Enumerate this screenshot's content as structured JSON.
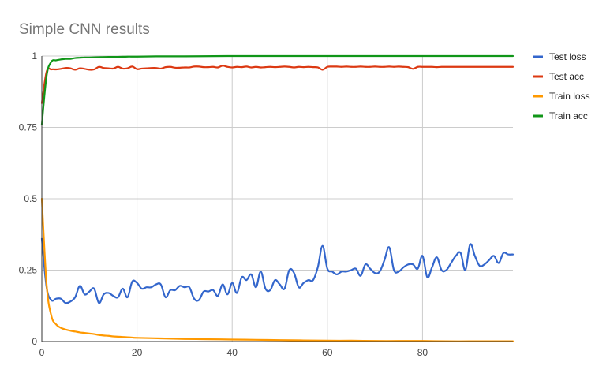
{
  "chart_data": {
    "type": "line",
    "title": "Simple CNN results",
    "xlabel": "",
    "ylabel": "",
    "xlim": [
      0,
      99
    ],
    "ylim": [
      0,
      1
    ],
    "x_ticks": [
      "0",
      "20",
      "40",
      "60",
      "80"
    ],
    "x_tick_values": [
      0,
      20,
      40,
      60,
      80
    ],
    "y_ticks": [
      "0",
      "0.25",
      "0.5",
      "0.75",
      "1"
    ],
    "y_tick_values": [
      0,
      0.25,
      0.5,
      0.75,
      1
    ],
    "grid": true,
    "legend_position": "right",
    "series": [
      {
        "name": "Test loss",
        "color": "#3366cc",
        "x": [
          0,
          1,
          2,
          3,
          4,
          5,
          6,
          7,
          8,
          9,
          10,
          11,
          12,
          13,
          14,
          15,
          16,
          17,
          18,
          19,
          20,
          21,
          22,
          23,
          24,
          25,
          26,
          27,
          28,
          29,
          30,
          31,
          32,
          33,
          34,
          35,
          36,
          37,
          38,
          39,
          40,
          41,
          42,
          43,
          44,
          45,
          46,
          47,
          48,
          49,
          50,
          51,
          52,
          53,
          54,
          55,
          56,
          57,
          58,
          59,
          60,
          61,
          62,
          63,
          64,
          65,
          66,
          67,
          68,
          69,
          70,
          71,
          72,
          73,
          74,
          75,
          76,
          77,
          78,
          79,
          80,
          81,
          82,
          83,
          84,
          85,
          86,
          87,
          88,
          89,
          90,
          91,
          92,
          93,
          94,
          95,
          96,
          97,
          98,
          99
        ],
        "y": [
          0.36,
          0.19,
          0.145,
          0.15,
          0.15,
          0.135,
          0.14,
          0.155,
          0.195,
          0.165,
          0.175,
          0.185,
          0.135,
          0.165,
          0.17,
          0.16,
          0.155,
          0.185,
          0.155,
          0.21,
          0.205,
          0.185,
          0.19,
          0.19,
          0.2,
          0.2,
          0.155,
          0.18,
          0.18,
          0.195,
          0.19,
          0.19,
          0.15,
          0.145,
          0.175,
          0.175,
          0.18,
          0.16,
          0.2,
          0.165,
          0.205,
          0.17,
          0.225,
          0.215,
          0.235,
          0.19,
          0.245,
          0.185,
          0.18,
          0.215,
          0.2,
          0.185,
          0.25,
          0.24,
          0.19,
          0.205,
          0.215,
          0.215,
          0.26,
          0.335,
          0.255,
          0.245,
          0.235,
          0.245,
          0.245,
          0.25,
          0.255,
          0.23,
          0.27,
          0.255,
          0.24,
          0.245,
          0.285,
          0.33,
          0.25,
          0.245,
          0.26,
          0.27,
          0.27,
          0.255,
          0.3,
          0.225,
          0.26,
          0.295,
          0.25,
          0.25,
          0.275,
          0.3,
          0.31,
          0.25,
          0.34,
          0.3,
          0.265,
          0.27,
          0.285,
          0.3,
          0.275,
          0.31,
          0.305,
          0.305
        ]
      },
      {
        "name": "Test acc",
        "color": "#dc3912",
        "x": [
          0,
          1,
          2,
          3,
          4,
          5,
          6,
          7,
          8,
          9,
          10,
          11,
          12,
          13,
          14,
          15,
          16,
          17,
          18,
          19,
          20,
          21,
          22,
          23,
          24,
          25,
          26,
          27,
          28,
          29,
          30,
          31,
          32,
          33,
          34,
          35,
          36,
          37,
          38,
          39,
          40,
          41,
          42,
          43,
          44,
          45,
          46,
          47,
          48,
          49,
          50,
          51,
          52,
          53,
          54,
          55,
          56,
          57,
          58,
          59,
          60,
          61,
          62,
          63,
          64,
          65,
          66,
          67,
          68,
          69,
          70,
          71,
          72,
          73,
          74,
          75,
          76,
          77,
          78,
          79,
          80,
          81,
          82,
          83,
          84,
          85,
          86,
          87,
          88,
          89,
          90,
          91,
          92,
          93,
          94,
          95,
          96,
          97,
          98,
          99
        ],
        "y": [
          0.835,
          0.945,
          0.953,
          0.953,
          0.955,
          0.958,
          0.957,
          0.952,
          0.957,
          0.955,
          0.952,
          0.953,
          0.962,
          0.958,
          0.957,
          0.956,
          0.962,
          0.956,
          0.957,
          0.963,
          0.954,
          0.956,
          0.957,
          0.958,
          0.958,
          0.956,
          0.961,
          0.962,
          0.959,
          0.959,
          0.96,
          0.96,
          0.963,
          0.963,
          0.961,
          0.961,
          0.962,
          0.96,
          0.966,
          0.962,
          0.96,
          0.962,
          0.961,
          0.963,
          0.96,
          0.962,
          0.96,
          0.961,
          0.962,
          0.961,
          0.962,
          0.963,
          0.962,
          0.96,
          0.962,
          0.961,
          0.962,
          0.961,
          0.96,
          0.952,
          0.962,
          0.963,
          0.963,
          0.962,
          0.963,
          0.962,
          0.962,
          0.963,
          0.962,
          0.962,
          0.963,
          0.962,
          0.962,
          0.963,
          0.962,
          0.963,
          0.962,
          0.961,
          0.955,
          0.962,
          0.962,
          0.962,
          0.962,
          0.961,
          0.962,
          0.962,
          0.962,
          0.962,
          0.962,
          0.962,
          0.962,
          0.962,
          0.962,
          0.962,
          0.962,
          0.962,
          0.962,
          0.962,
          0.962,
          0.962
        ]
      },
      {
        "name": "Train loss",
        "color": "#ff9900",
        "x": [
          0,
          1,
          2,
          3,
          4,
          5,
          6,
          7,
          8,
          9,
          10,
          11,
          12,
          13,
          14,
          15,
          16,
          17,
          18,
          19,
          20,
          25,
          30,
          35,
          40,
          45,
          50,
          55,
          60,
          65,
          70,
          75,
          80,
          85,
          90,
          95,
          99
        ],
        "y": [
          0.5,
          0.2,
          0.09,
          0.06,
          0.048,
          0.042,
          0.038,
          0.035,
          0.032,
          0.03,
          0.028,
          0.026,
          0.023,
          0.021,
          0.02,
          0.018,
          0.017,
          0.016,
          0.015,
          0.014,
          0.013,
          0.011,
          0.009,
          0.008,
          0.007,
          0.006,
          0.005,
          0.004,
          0.003,
          0.003,
          0.002,
          0.002,
          0.002,
          0.001,
          0.001,
          0.001,
          0.001
        ]
      },
      {
        "name": "Train acc",
        "color": "#109618",
        "x": [
          0,
          1,
          2,
          3,
          4,
          5,
          6,
          7,
          8,
          9,
          10,
          12,
          14,
          16,
          18,
          20,
          25,
          30,
          40,
          50,
          60,
          70,
          80,
          90,
          99
        ],
        "y": [
          0.76,
          0.93,
          0.98,
          0.985,
          0.988,
          0.99,
          0.99,
          0.993,
          0.994,
          0.995,
          0.995,
          0.996,
          0.997,
          0.997,
          0.998,
          0.998,
          0.999,
          0.999,
          1.0,
          1.0,
          1.0,
          1.0,
          1.0,
          1.0,
          1.0
        ]
      }
    ]
  }
}
